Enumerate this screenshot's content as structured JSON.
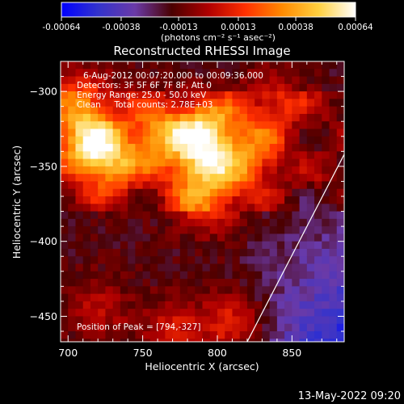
{
  "chart_data": {
    "type": "heatmap",
    "title": "Reconstructed RHESSI Image",
    "xlabel": "Heliocentric X (arcsec)",
    "ylabel": "Heliocentric Y (arcsec)",
    "xlim": [
      695,
      885
    ],
    "ylim": [
      -467,
      -280
    ],
    "x_ticks": [
      700,
      750,
      800,
      850
    ],
    "y_ticks": [
      -300,
      -350,
      -400,
      -450
    ],
    "colorbar": {
      "ticks": [
        -0.00064,
        -0.00038,
        -0.00013,
        0.00013,
        0.00038,
        0.00064
      ],
      "tick_labels": [
        "-0.00064",
        "-0.00038",
        "-0.00013",
        "0.00013",
        "0.00038",
        "0.00064"
      ],
      "unit_label": "(photons cm⁻² s⁻¹ asec⁻²)",
      "colormap": [
        "#0000ff",
        "#3333cc",
        "#6a3aa8",
        "#4a0000",
        "#b00000",
        "#ff3000",
        "#ff8a00",
        "#ffd040",
        "#ffffff"
      ]
    },
    "info_lines": [
      "6-Aug-2012 00:07:20.000 to 00:09:36.000",
      "Detectors: 3F 5F 6F 7F 8F, Att 0",
      "Energy Range: 25.0 - 50.0 keV",
      "Clean     Total counts: 2.78E+03"
    ],
    "peak_note": "Position of Peak = [794,-327]",
    "peak": {
      "x": 794,
      "y": -327
    },
    "limb_line": [
      [
        820,
        -467
      ],
      [
        885,
        -342
      ]
    ],
    "bright_sources": [
      {
        "x": 712,
        "y": -333,
        "value": 0.00055
      },
      {
        "x": 728,
        "y": -347,
        "value": 0.0005
      },
      {
        "x": 760,
        "y": -327,
        "value": 0.00048
      },
      {
        "x": 794,
        "y": -327,
        "value": 0.00064
      },
      {
        "x": 785,
        "y": -350,
        "value": 0.0004
      },
      {
        "x": 823,
        "y": -345,
        "value": 0.0004
      },
      {
        "x": 795,
        "y": -372,
        "value": 0.0004
      },
      {
        "x": 710,
        "y": -305,
        "value": 0.00035
      },
      {
        "x": 838,
        "y": -308,
        "value": 0.00028
      },
      {
        "x": 812,
        "y": -455,
        "value": 0.00032
      },
      {
        "x": 770,
        "y": -460,
        "value": 0.00025
      },
      {
        "x": 720,
        "y": -445,
        "value": 0.00018
      }
    ]
  },
  "footer_timestamp": "13-May-2022 09:20"
}
